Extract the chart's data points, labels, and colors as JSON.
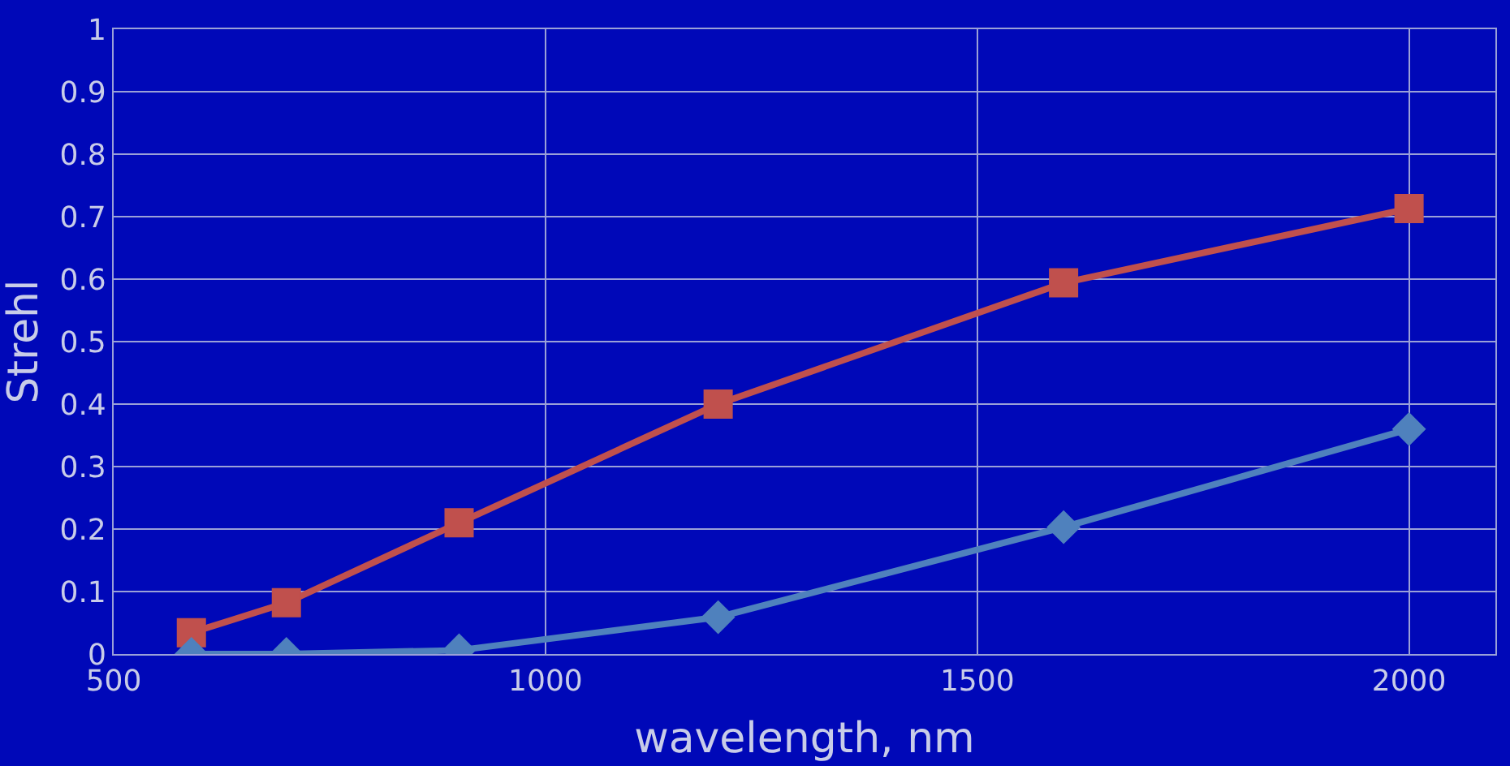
{
  "chart_data": {
    "type": "line",
    "xlabel": "wavelength, nm",
    "ylabel": "Strehl",
    "x": [
      590,
      700,
      900,
      1200,
      1600,
      2000
    ],
    "series": [
      {
        "color": "#c0504d",
        "values": [
          0.034,
          0.082,
          0.21,
          0.4,
          0.594,
          0.713
        ],
        "marker": "square"
      },
      {
        "color": "#4f81bd",
        "values": [
          0,
          0,
          0.006,
          0.059,
          0.203,
          0.36
        ],
        "marker": "diamond"
      }
    ],
    "xlim": [
      500,
      2100
    ],
    "xticks": [
      500,
      1000,
      1500,
      2000
    ],
    "ylim": [
      0,
      1
    ],
    "yticks": [
      0,
      0.1,
      0.2,
      0.3,
      0.4,
      0.5,
      0.6,
      0.7,
      0.8,
      0.9,
      1
    ],
    "grid": true
  }
}
